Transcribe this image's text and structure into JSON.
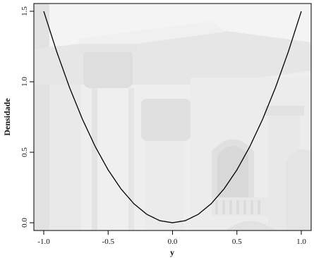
{
  "chart_data": {
    "type": "line",
    "title": "",
    "xlabel": "y",
    "ylabel": "Densidade",
    "xlim": [
      -1.0,
      1.0
    ],
    "ylim": [
      0.0,
      1.5
    ],
    "x_ticks": [
      -1.0,
      -0.5,
      0.0,
      0.5,
      1.0
    ],
    "x_tick_labels": [
      "-1.0",
      "-0.5",
      "0.0",
      "0.5",
      "1.0"
    ],
    "y_ticks": [
      0.0,
      0.5,
      1.0,
      1.5
    ],
    "y_tick_labels": [
      "0.0",
      "0.5",
      "1.0",
      "1.5"
    ],
    "grid": false,
    "legend": "none",
    "series": [
      {
        "x": [
          -1.0,
          -0.9,
          -0.8,
          -0.7,
          -0.6,
          -0.5,
          -0.4,
          -0.3,
          -0.2,
          -0.1,
          0.0,
          0.1,
          0.2,
          0.3,
          0.4,
          0.5,
          0.6,
          0.7,
          0.8,
          0.9,
          1.0
        ],
        "values": [
          1.5,
          1.215,
          0.96,
          0.735,
          0.54,
          0.375,
          0.24,
          0.135,
          0.06,
          0.015,
          0.0,
          0.015,
          0.06,
          0.135,
          0.24,
          0.375,
          0.54,
          0.735,
          0.96,
          1.215,
          1.5
        ]
      }
    ],
    "line_color": "#000000",
    "axis_color": "#000000",
    "background_image": "building-facade-with-columns"
  }
}
